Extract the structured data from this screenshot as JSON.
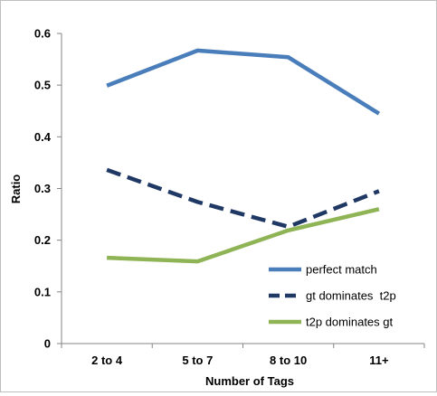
{
  "chart_data": {
    "type": "line",
    "title": "",
    "xlabel": "Number of Tags",
    "ylabel": "Ratio",
    "categories": [
      "2 to 4",
      "5 to 7",
      "8 to 10",
      "11+"
    ],
    "ylim": [
      0,
      0.6
    ],
    "yticks": [
      "0",
      "0.1",
      "0.2",
      "0.3",
      "0.4",
      "0.5",
      "0.6"
    ],
    "yticks_values": [
      0,
      0.1,
      0.2,
      0.3,
      0.4,
      0.5,
      0.6
    ],
    "grid": false,
    "legend_position": "bottom-right",
    "series": [
      {
        "name": "perfect match",
        "values": [
          0.499,
          0.567,
          0.554,
          0.445
        ],
        "color": "#4a7ebb",
        "dash": "solid"
      },
      {
        "name": "gt dominates  t2p",
        "values": [
          0.336,
          0.274,
          0.226,
          0.295
        ],
        "color": "#1f3864",
        "dash": "dashed"
      },
      {
        "name": "t2p dominates gt",
        "values": [
          0.166,
          0.159,
          0.219,
          0.26
        ],
        "color": "#8eb455",
        "dash": "solid"
      }
    ]
  }
}
